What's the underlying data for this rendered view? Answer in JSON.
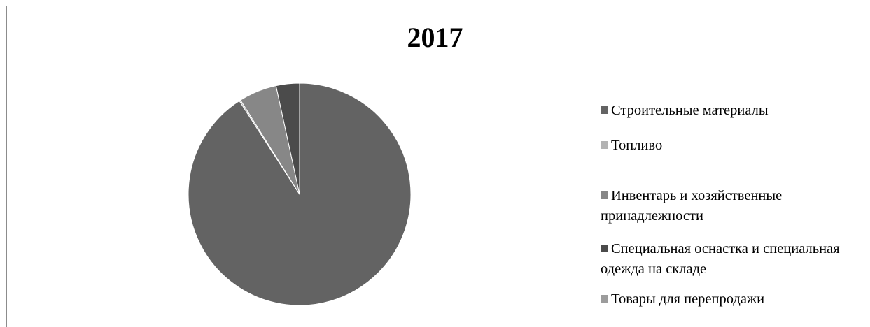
{
  "chart_data": {
    "type": "pie",
    "title": "2017",
    "categories": [
      "Строительные материалы",
      "Топливо",
      "Инвентарь и хозяйственные принадлежности",
      "Специальная оснастка и специальная одежда на складе",
      "Товары для перепродажи"
    ],
    "values": [
      90.9,
      0.2,
      5.5,
      3.4,
      0.0
    ],
    "colors": [
      "#636363",
      "#b3b3b3",
      "#878787",
      "#4b4b4b",
      "#9c9c9c"
    ],
    "legend_position": "right"
  }
}
